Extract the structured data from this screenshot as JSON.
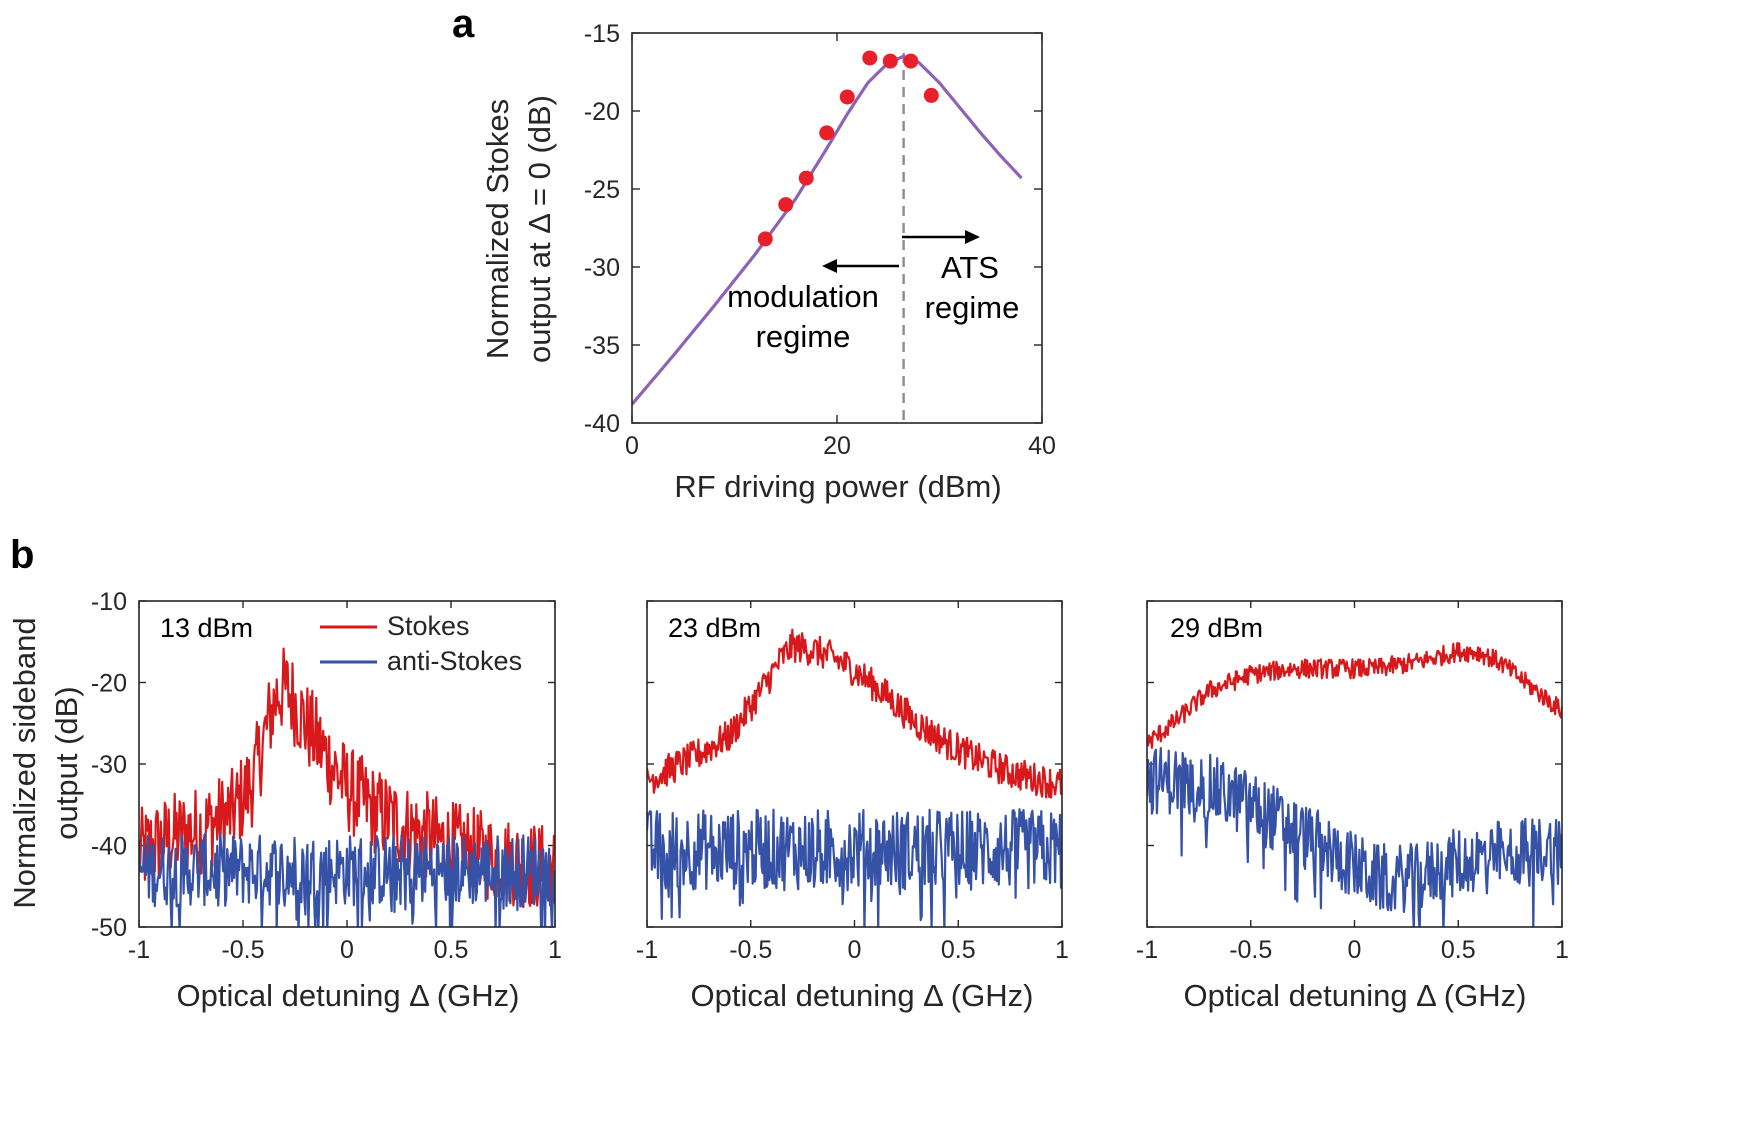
{
  "chart_data": [
    {
      "id": "a",
      "type": "scatter",
      "panel_letter": "a",
      "xlabel": "RF driving power (dBm)",
      "ylabel_lines": [
        "Normalized Stokes",
        "output at Δ = 0 (dB)"
      ],
      "xlim": [
        0,
        40
      ],
      "ylim": [
        -40,
        -15
      ],
      "xticks": [
        0,
        20,
        40
      ],
      "yticks": [
        -40,
        -35,
        -30,
        -25,
        -20,
        -15
      ],
      "points": {
        "name": "measured",
        "color": "#e8202a",
        "x": [
          13,
          15,
          17,
          19,
          21,
          23.2,
          25.2,
          27.2,
          29.2
        ],
        "y": [
          -28.2,
          -26.0,
          -24.3,
          -21.4,
          -19.1,
          -16.6,
          -16.8,
          -16.8,
          -19.0
        ]
      },
      "fit_curve": {
        "name": "theory",
        "color": "#8d63b5",
        "x": [
          0,
          4,
          8,
          12,
          16,
          19,
          21,
          23,
          25,
          26.5,
          28,
          30,
          32,
          34,
          36,
          38
        ],
        "y": [
          -38.8,
          -35.7,
          -32.5,
          -29.2,
          -25.6,
          -22.4,
          -20.2,
          -18.2,
          -16.9,
          -16.5,
          -16.9,
          -18.2,
          -19.8,
          -21.4,
          -22.9,
          -24.3
        ]
      },
      "threshold_x": 26.5,
      "annotations": {
        "left_lines": [
          "modulation",
          "regime"
        ],
        "right_lines": [
          "ATS",
          "regime"
        ]
      }
    },
    {
      "id": "b1",
      "type": "line",
      "panel_letter": "b",
      "power_label": "13 dBm",
      "xlabel": "Optical detuning Δ (GHz)",
      "ylabel_lines": [
        "Normalized sideband",
        "output (dB)"
      ],
      "xlim": [
        -1,
        1
      ],
      "ylim": [
        -50,
        -10
      ],
      "xticks": [
        -1,
        -0.5,
        0,
        0.5,
        1
      ],
      "xtick_labels": [
        "-1",
        "-0.5",
        "0",
        "0.5",
        "1"
      ],
      "yticks": [
        -50,
        -40,
        -30,
        -20,
        -10
      ],
      "series": [
        {
          "name": "Stokes",
          "color": "#d7191c",
          "x": [
            -1,
            -0.85,
            -0.7,
            -0.55,
            -0.45,
            -0.38,
            -0.33,
            -0.28,
            -0.2,
            -0.1,
            0,
            0.15,
            0.3,
            0.5,
            0.7,
            0.9,
            1.0
          ],
          "y": [
            -41,
            -39,
            -38,
            -36,
            -32,
            -25,
            -21,
            -21,
            -25,
            -29,
            -33,
            -36,
            -38,
            -40,
            -41.5,
            -42.5,
            -43
          ]
        },
        {
          "name": "anti-Stokes",
          "color": "#3652a6",
          "x": [
            -1,
            1
          ],
          "y": [
            -43,
            -43
          ]
        }
      ]
    },
    {
      "id": "b2",
      "type": "line",
      "power_label": "23 dBm",
      "xlabel": "Optical detuning Δ (GHz)",
      "xlim": [
        -1,
        1
      ],
      "ylim": [
        -50,
        -10
      ],
      "xticks": [
        -1,
        -0.5,
        0,
        0.5,
        1
      ],
      "xtick_labels": [
        "-1",
        "-0.5",
        "0",
        "0.5",
        "1"
      ],
      "yticks": [
        -50,
        -40,
        -30,
        -20,
        -10
      ],
      "series": [
        {
          "name": "Stokes",
          "color": "#d7191c",
          "x": [
            -1,
            -0.8,
            -0.6,
            -0.45,
            -0.35,
            -0.3,
            -0.2,
            -0.1,
            0,
            0.15,
            0.3,
            0.45,
            0.6,
            0.75,
            0.9,
            1.0
          ],
          "y": [
            -32,
            -29.5,
            -26.5,
            -21,
            -17,
            -15.5,
            -16,
            -17,
            -18.5,
            -21.5,
            -25,
            -27.5,
            -29.5,
            -31,
            -32,
            -32.5
          ]
        },
        {
          "name": "anti-Stokes",
          "color": "#3652a6",
          "x": [
            -1,
            1
          ],
          "y": [
            -40.5,
            -40.5
          ]
        }
      ]
    },
    {
      "id": "b3",
      "type": "line",
      "power_label": "29 dBm",
      "xlabel": "Optical detuning Δ (GHz)",
      "xlim": [
        -1,
        1
      ],
      "ylim": [
        -50,
        -10
      ],
      "xticks": [
        -1,
        -0.5,
        0,
        0.5,
        1
      ],
      "xtick_labels": [
        "-1",
        "-0.5",
        "0",
        "0.5",
        "1"
      ],
      "yticks": [
        -50,
        -40,
        -30,
        -20,
        -10
      ],
      "series": [
        {
          "name": "Stokes",
          "color": "#d7191c",
          "x": [
            -1,
            -0.85,
            -0.7,
            -0.5,
            -0.3,
            -0.1,
            0.1,
            0.3,
            0.5,
            0.6,
            0.7,
            0.8,
            0.9,
            1.0
          ],
          "y": [
            -27.5,
            -24.5,
            -21,
            -19,
            -18.3,
            -18.3,
            -18.3,
            -17.5,
            -16.2,
            -16.3,
            -17.5,
            -19.5,
            -21.5,
            -23.5
          ]
        },
        {
          "name": "anti-Stokes",
          "color": "#3652a6",
          "x": [
            -1,
            -0.85,
            -0.7,
            -0.5,
            -0.3,
            -0.1,
            0.1,
            0.3,
            0.5,
            0.7,
            0.9,
            1.0
          ],
          "y": [
            -32,
            -32,
            -33,
            -35,
            -38,
            -41,
            -44,
            -44,
            -42,
            -41,
            -40.5,
            -40
          ]
        }
      ]
    }
  ],
  "legend": {
    "stokes": "Stokes",
    "anti_stokes": "anti-Stokes"
  }
}
